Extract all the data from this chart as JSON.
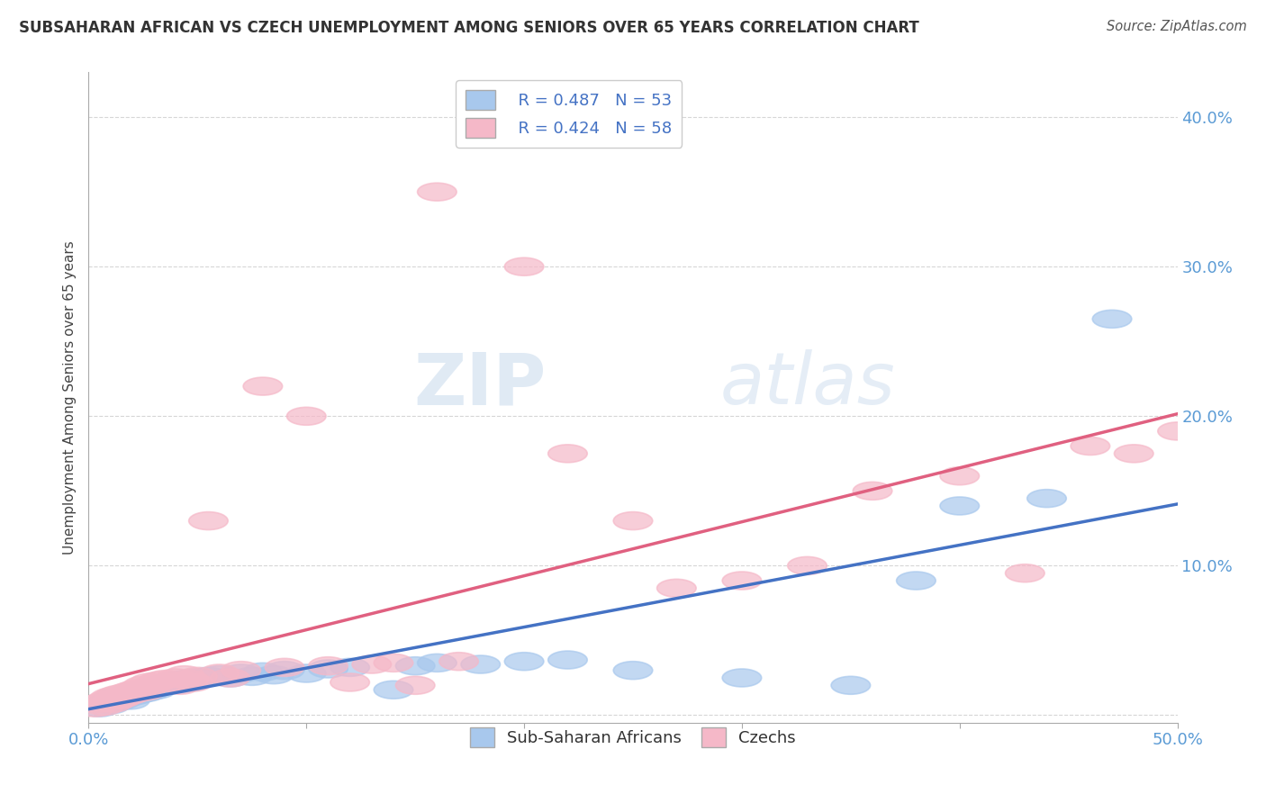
{
  "title": "SUBSAHARAN AFRICAN VS CZECH UNEMPLOYMENT AMONG SENIORS OVER 65 YEARS CORRELATION CHART",
  "source": "Source: ZipAtlas.com",
  "ylabel": "Unemployment Among Seniors over 65 years",
  "xlim": [
    0,
    0.5
  ],
  "ylim": [
    -0.005,
    0.43
  ],
  "yticks": [
    0.0,
    0.1,
    0.2,
    0.3,
    0.4
  ],
  "ytick_labels": [
    "",
    "10.0%",
    "20.0%",
    "30.0%",
    "40.0%"
  ],
  "legend_blue_r": "R = 0.487",
  "legend_blue_n": "N = 53",
  "legend_pink_r": "R = 0.424",
  "legend_pink_n": "N = 58",
  "blue_color": "#A8C8ED",
  "pink_color": "#F5B8C8",
  "blue_line_color": "#4472C4",
  "pink_line_color": "#E06080",
  "blue_scatter": [
    [
      0.005,
      0.005
    ],
    [
      0.008,
      0.008
    ],
    [
      0.01,
      0.01
    ],
    [
      0.01,
      0.007
    ],
    [
      0.012,
      0.012
    ],
    [
      0.013,
      0.009
    ],
    [
      0.015,
      0.013
    ],
    [
      0.015,
      0.01
    ],
    [
      0.017,
      0.014
    ],
    [
      0.018,
      0.012
    ],
    [
      0.019,
      0.01
    ],
    [
      0.02,
      0.015
    ],
    [
      0.021,
      0.013
    ],
    [
      0.022,
      0.016
    ],
    [
      0.023,
      0.014
    ],
    [
      0.025,
      0.017
    ],
    [
      0.026,
      0.015
    ],
    [
      0.027,
      0.018
    ],
    [
      0.028,
      0.016
    ],
    [
      0.03,
      0.019
    ],
    [
      0.031,
      0.017
    ],
    [
      0.033,
      0.02
    ],
    [
      0.035,
      0.021
    ],
    [
      0.037,
      0.022
    ],
    [
      0.04,
      0.023
    ],
    [
      0.042,
      0.021
    ],
    [
      0.045,
      0.024
    ],
    [
      0.047,
      0.022
    ],
    [
      0.05,
      0.025
    ],
    [
      0.055,
      0.026
    ],
    [
      0.06,
      0.027
    ],
    [
      0.065,
      0.025
    ],
    [
      0.07,
      0.028
    ],
    [
      0.075,
      0.026
    ],
    [
      0.08,
      0.029
    ],
    [
      0.085,
      0.027
    ],
    [
      0.09,
      0.03
    ],
    [
      0.1,
      0.028
    ],
    [
      0.11,
      0.031
    ],
    [
      0.12,
      0.032
    ],
    [
      0.14,
      0.017
    ],
    [
      0.15,
      0.033
    ],
    [
      0.16,
      0.035
    ],
    [
      0.18,
      0.034
    ],
    [
      0.2,
      0.036
    ],
    [
      0.22,
      0.037
    ],
    [
      0.25,
      0.03
    ],
    [
      0.3,
      0.025
    ],
    [
      0.35,
      0.02
    ],
    [
      0.38,
      0.09
    ],
    [
      0.4,
      0.14
    ],
    [
      0.44,
      0.145
    ],
    [
      0.47,
      0.265
    ]
  ],
  "pink_scatter": [
    [
      0.003,
      0.005
    ],
    [
      0.005,
      0.008
    ],
    [
      0.007,
      0.006
    ],
    [
      0.008,
      0.01
    ],
    [
      0.01,
      0.012
    ],
    [
      0.011,
      0.008
    ],
    [
      0.012,
      0.013
    ],
    [
      0.013,
      0.01
    ],
    [
      0.014,
      0.014
    ],
    [
      0.015,
      0.011
    ],
    [
      0.016,
      0.012
    ],
    [
      0.017,
      0.015
    ],
    [
      0.018,
      0.013
    ],
    [
      0.019,
      0.016
    ],
    [
      0.02,
      0.014
    ],
    [
      0.021,
      0.017
    ],
    [
      0.022,
      0.015
    ],
    [
      0.023,
      0.018
    ],
    [
      0.025,
      0.02
    ],
    [
      0.026,
      0.016
    ],
    [
      0.027,
      0.019
    ],
    [
      0.028,
      0.022
    ],
    [
      0.03,
      0.021
    ],
    [
      0.032,
      0.023
    ],
    [
      0.035,
      0.024
    ],
    [
      0.037,
      0.022
    ],
    [
      0.04,
      0.025
    ],
    [
      0.042,
      0.02
    ],
    [
      0.044,
      0.027
    ],
    [
      0.046,
      0.024
    ],
    [
      0.048,
      0.022
    ],
    [
      0.05,
      0.026
    ],
    [
      0.055,
      0.13
    ],
    [
      0.06,
      0.028
    ],
    [
      0.065,
      0.025
    ],
    [
      0.07,
      0.03
    ],
    [
      0.08,
      0.22
    ],
    [
      0.09,
      0.032
    ],
    [
      0.1,
      0.2
    ],
    [
      0.11,
      0.033
    ],
    [
      0.12,
      0.022
    ],
    [
      0.13,
      0.034
    ],
    [
      0.14,
      0.035
    ],
    [
      0.15,
      0.02
    ],
    [
      0.16,
      0.35
    ],
    [
      0.17,
      0.036
    ],
    [
      0.2,
      0.3
    ],
    [
      0.22,
      0.175
    ],
    [
      0.25,
      0.13
    ],
    [
      0.27,
      0.085
    ],
    [
      0.3,
      0.09
    ],
    [
      0.33,
      0.1
    ],
    [
      0.36,
      0.15
    ],
    [
      0.4,
      0.16
    ],
    [
      0.43,
      0.095
    ],
    [
      0.46,
      0.18
    ],
    [
      0.48,
      0.175
    ],
    [
      0.5,
      0.19
    ]
  ],
  "watermark_zip": "ZIP",
  "watermark_atlas": "atlas",
  "background_color": "#FFFFFF",
  "grid_color": "#BBBBBB"
}
